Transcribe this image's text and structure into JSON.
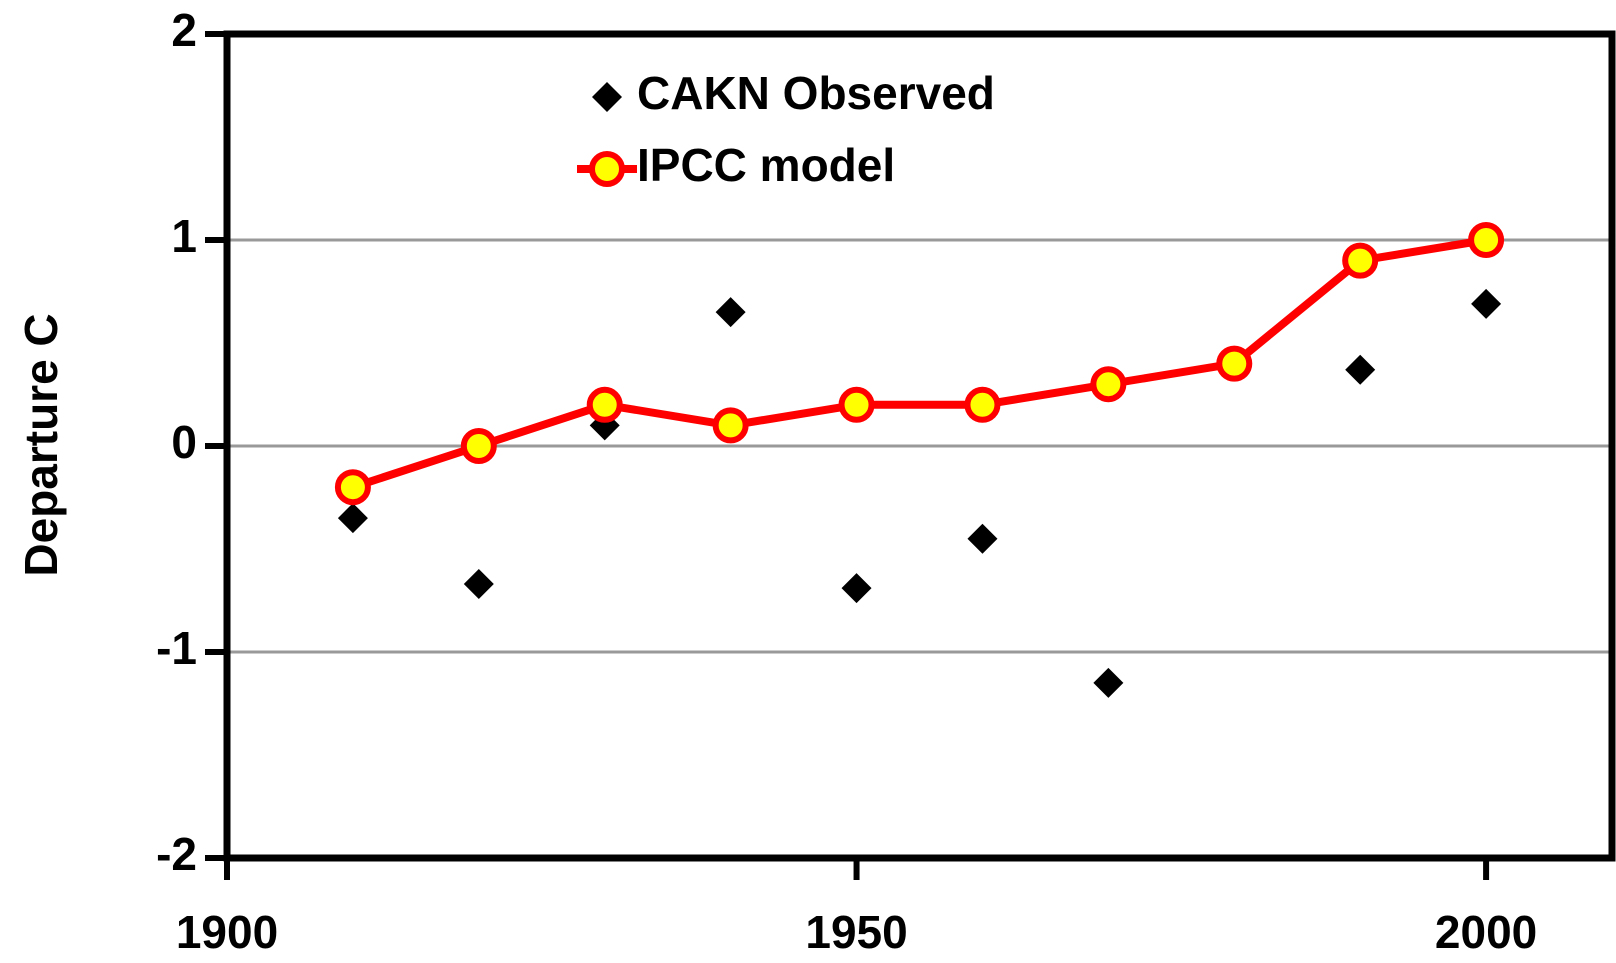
{
  "chart_data": {
    "type": "line",
    "y_label": "Departure C",
    "x": [
      1910,
      1920,
      1930,
      1940,
      1950,
      1960,
      1970,
      1980,
      1990,
      2000
    ],
    "series": [
      {
        "name": "CAKN Observed",
        "color": "#000000",
        "line": false,
        "marker": "diamond",
        "values": [
          -0.35,
          -0.67,
          0.1,
          0.65,
          -0.69,
          -0.45,
          -1.15,
          null,
          0.37,
          0.69
        ]
      },
      {
        "name": "IPCC model",
        "color": "#ff0000",
        "line": true,
        "marker": "circle",
        "marker_color": "#ffff00",
        "values": [
          -0.2,
          0,
          0.2,
          0.1,
          0.2,
          0.2,
          0.3,
          0.4,
          0.9,
          1.0
        ]
      }
    ],
    "xlim": [
      1900,
      2010
    ],
    "ylim": [
      -2,
      2
    ],
    "xticks": [
      1900,
      1950,
      2000
    ],
    "yticks": [
      -2,
      -1,
      0,
      1,
      2
    ],
    "grid_values": [
      -1,
      0,
      1
    ],
    "grid": true
  }
}
